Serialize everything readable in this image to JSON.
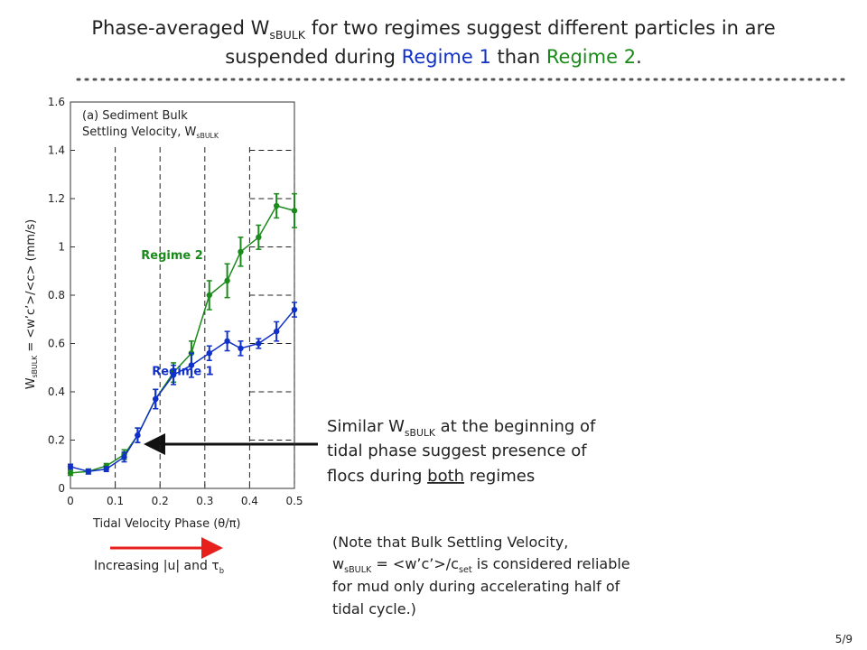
{
  "title_line1": [
    "Phase-averaged W",
    "sBULK",
    " for two regimes suggest different particles in are"
  ],
  "title_line2": [
    "suspended during ",
    "Regime 1",
    " than ",
    "Regime 2",
    "."
  ],
  "chart_data": {
    "type": "line",
    "inner_label": [
      "(a) Sediment Bulk",
      "Settling Velocity, W",
      "sBULK"
    ],
    "xlabel": "Tidal Velocity Phase (θ/π)",
    "ylabel": [
      "W",
      "sBULK",
      " = <w’c’>/<c> (mm/s)"
    ],
    "x": [
      0,
      0.04,
      0.08,
      0.12,
      0.15,
      0.19,
      0.23,
      0.27,
      0.31,
      0.35,
      0.38,
      0.42,
      0.46,
      0.5
    ],
    "series": [
      {
        "name": "Regime 2",
        "color": "#1a8a1a",
        "values": [
          0.064,
          0.07,
          0.093,
          0.14,
          0.22,
          0.37,
          0.48,
          0.56,
          0.8,
          0.86,
          0.98,
          1.04,
          1.17,
          1.15
        ],
        "errors": [
          0.01,
          0.01,
          0.01,
          0.02,
          0.03,
          0.04,
          0.04,
          0.05,
          0.06,
          0.07,
          0.06,
          0.05,
          0.05,
          0.07
        ]
      },
      {
        "name": "Regime 1",
        "color": "#1030c8",
        "values": [
          0.09,
          0.07,
          0.08,
          0.13,
          0.22,
          0.37,
          0.47,
          0.51,
          0.56,
          0.61,
          0.58,
          0.6,
          0.65,
          0.74
        ],
        "errors": [
          0.01,
          0.01,
          0.01,
          0.02,
          0.03,
          0.04,
          0.04,
          0.05,
          0.03,
          0.04,
          0.03,
          0.02,
          0.04,
          0.03
        ]
      }
    ],
    "xlim": [
      0,
      0.5
    ],
    "ylim": [
      0,
      1.6
    ],
    "xticks": [
      0,
      0.1,
      0.2,
      0.3,
      0.4,
      0.5
    ],
    "yticks": [
      0,
      0.2,
      0.4,
      0.6,
      0.8,
      1,
      1.2,
      1.4,
      1.6
    ],
    "grid": true
  },
  "annotation": [
    [
      "Similar W",
      "sBULK",
      "  at the beginning of"
    ],
    [
      "tidal phase suggest presence of"
    ],
    [
      "flocs during ",
      "both",
      " regimes"
    ]
  ],
  "note": [
    [
      "(Note that Bulk Settling Velocity,"
    ],
    [
      "w",
      "sBULK",
      " = <w’c’>/c",
      "set",
      "  is considered reliable"
    ],
    [
      "for mud only during accelerating half of"
    ],
    [
      "tidal cycle.)"
    ]
  ],
  "arrow_label": [
    "Increasing |u| and τ",
    "b"
  ],
  "page_number": "5/9"
}
